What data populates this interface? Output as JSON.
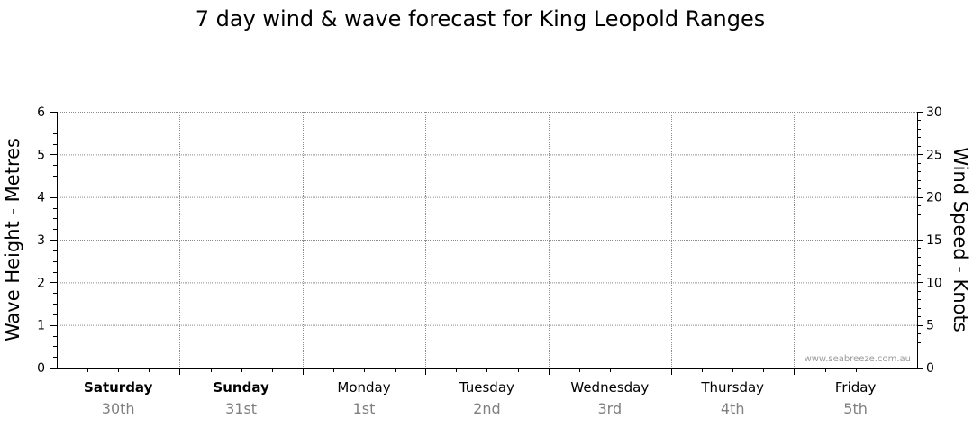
{
  "chart_data": {
    "type": "line",
    "title": "7 day wind & wave forecast for King Leopold Ranges",
    "ylabel_left": "Wave Height - Metres",
    "ylabel_right": "Wind Speed - Knots",
    "ylim_left": [
      0,
      6
    ],
    "ylim_right": [
      0,
      30
    ],
    "yticks_left": [
      "0",
      "1",
      "2",
      "3",
      "4",
      "5",
      "6"
    ],
    "yticks_right": [
      "0",
      "5",
      "10",
      "15",
      "20",
      "25",
      "30"
    ],
    "grid": true,
    "days": [
      {
        "name": "Saturday",
        "date": "30th",
        "bold": true
      },
      {
        "name": "Sunday",
        "date": "31st",
        "bold": true
      },
      {
        "name": "Monday",
        "date": "1st",
        "bold": false
      },
      {
        "name": "Tuesday",
        "date": "2nd",
        "bold": false
      },
      {
        "name": "Wednesday",
        "date": "3rd",
        "bold": false
      },
      {
        "name": "Thursday",
        "date": "4th",
        "bold": false
      },
      {
        "name": "Friday",
        "date": "5th",
        "bold": false
      }
    ],
    "series": []
  },
  "watermark": "www.seabreeze.com.au"
}
